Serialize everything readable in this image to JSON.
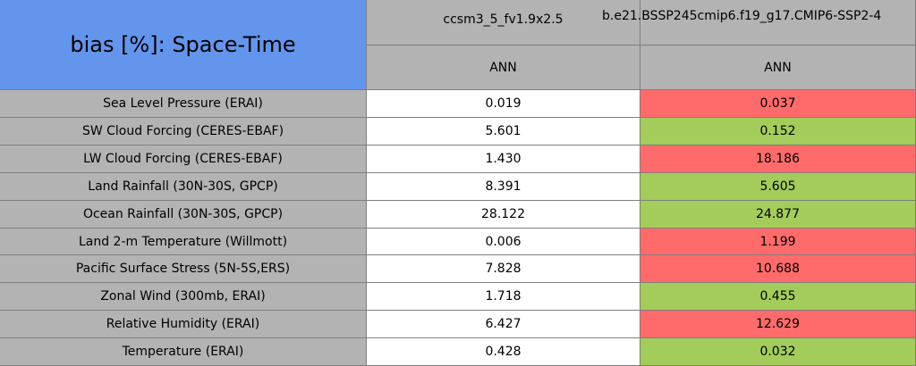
{
  "header": {
    "title": "bias [%]: Space-Time",
    "columns": [
      "ccsm3_5_fv1.9x2.5",
      "b.e21.BSSP245cmip6.f19_g17.CMIP6-SSP2-4"
    ],
    "subcolumns": [
      "ANN",
      "ANN"
    ]
  },
  "table": {
    "rows": [
      [
        "Sea Level Pressure (ERAI)",
        "0.019",
        "0.037"
      ],
      [
        "SW Cloud Forcing (CERES-EBAF)",
        "5.601",
        "0.152"
      ],
      [
        "LW Cloud Forcing (CERES-EBAF)",
        "1.430",
        "18.186"
      ],
      [
        "Land Rainfall (30N-30S, GPCP)",
        "8.391",
        "5.605"
      ],
      [
        "Ocean Rainfall (30N-30S, GPCP)",
        "28.122",
        "24.877"
      ],
      [
        "Land 2-m Temperature (Willmott)",
        "0.006",
        "1.199"
      ],
      [
        "Pacific Surface Stress (5N-5S,ERS)",
        "7.828",
        "10.688"
      ],
      [
        "Zonal Wind (300mb, ERAI)",
        "1.718",
        "0.455"
      ],
      [
        "Relative Humidity (ERAI)",
        "6.427",
        "12.629"
      ],
      [
        "Temperature (ERAI)",
        "0.428",
        "0.032"
      ]
    ],
    "cell_colors": [
      [
        "#ffffff",
        "#ff6b6b"
      ],
      [
        "#ffffff",
        "#a3cc5a"
      ],
      [
        "#ffffff",
        "#ff6b6b"
      ],
      [
        "#ffffff",
        "#a3cc5a"
      ],
      [
        "#ffffff",
        "#a3cc5a"
      ],
      [
        "#ffffff",
        "#ff6b6b"
      ],
      [
        "#ffffff",
        "#ff6b6b"
      ],
      [
        "#ffffff",
        "#a3cc5a"
      ],
      [
        "#ffffff",
        "#ff6b6b"
      ],
      [
        "#ffffff",
        "#a3cc5a"
      ]
    ]
  }
}
